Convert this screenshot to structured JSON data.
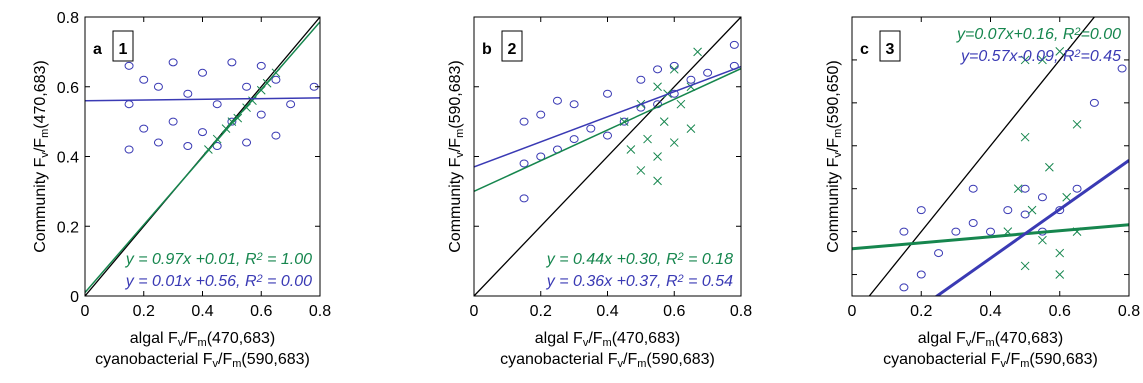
{
  "chart_data": [
    {
      "type": "scatter",
      "panel_letter": "a",
      "panel_number": "1",
      "ylabel": [
        "Community F",
        "v",
        "/F",
        "m",
        "(470,683)"
      ],
      "xlabel": [
        [
          "algal F",
          "v",
          "/F",
          "m",
          "(470,683)"
        ],
        [
          "cyanobacterial F",
          "v",
          "/F",
          "m",
          "(590,683)"
        ]
      ],
      "xlim": [
        0,
        0.8
      ],
      "ylim": [
        0,
        0.8
      ],
      "xticks": [
        0,
        0.2,
        0.4,
        0.6,
        0.8
      ],
      "yticks": [
        0,
        0.2,
        0.4,
        0.6,
        0.8
      ],
      "ytick_labels": true,
      "equation_corner": "bottom right",
      "series": [
        {
          "name": "algal",
          "marker": "o",
          "color": "#3a3ab4",
          "x": [
            0.15,
            0.15,
            0.15,
            0.2,
            0.2,
            0.25,
            0.25,
            0.3,
            0.3,
            0.35,
            0.35,
            0.4,
            0.4,
            0.45,
            0.45,
            0.5,
            0.5,
            0.55,
            0.55,
            0.6,
            0.6,
            0.65,
            0.65,
            0.7,
            0.78
          ],
          "y": [
            0.42,
            0.55,
            0.66,
            0.48,
            0.62,
            0.44,
            0.6,
            0.5,
            0.67,
            0.43,
            0.58,
            0.47,
            0.64,
            0.43,
            0.55,
            0.5,
            0.67,
            0.44,
            0.6,
            0.52,
            0.66,
            0.46,
            0.62,
            0.55,
            0.6
          ]
        },
        {
          "name": "cyanobacterial",
          "marker": "x",
          "color": "#16864e",
          "x": [
            0.42,
            0.45,
            0.48,
            0.5,
            0.52,
            0.55,
            0.57,
            0.6,
            0.62,
            0.65
          ],
          "y": [
            0.42,
            0.45,
            0.48,
            0.5,
            0.51,
            0.54,
            0.56,
            0.59,
            0.61,
            0.64
          ]
        }
      ],
      "fits": [
        {
          "color": "#16864e",
          "slope": 0.97,
          "intercept": 0.01,
          "label": [
            "y = 0.97x +0.01, R",
            "2",
            " = 1.00"
          ]
        },
        {
          "color": "#3a3ab4",
          "slope": 0.01,
          "intercept": 0.56,
          "label": [
            "y = 0.01x +0.56, R",
            "2",
            " = 0.00"
          ]
        }
      ]
    },
    {
      "type": "scatter",
      "panel_letter": "b",
      "panel_number": "2",
      "ylabel": [
        "Community F",
        "v",
        "/F",
        "m",
        "(590,683)"
      ],
      "xlabel": [
        [
          "algal F",
          "v",
          "/F",
          "m",
          "(470,683)"
        ],
        [
          "cyanobacterial F",
          "v",
          "/F",
          "m",
          "(590,683)"
        ]
      ],
      "xlim": [
        0,
        0.8
      ],
      "ylim": [
        0,
        0.8
      ],
      "xticks": [
        0,
        0.2,
        0.4,
        0.6,
        0.8
      ],
      "yticks": [
        0,
        0.2,
        0.4,
        0.6,
        0.8
      ],
      "ytick_labels": false,
      "equation_corner": "bottom right",
      "series": [
        {
          "name": "algal",
          "marker": "o",
          "color": "#3a3ab4",
          "x": [
            0.15,
            0.15,
            0.15,
            0.2,
            0.2,
            0.25,
            0.25,
            0.3,
            0.3,
            0.35,
            0.4,
            0.4,
            0.45,
            0.5,
            0.5,
            0.55,
            0.55,
            0.6,
            0.6,
            0.65,
            0.7,
            0.78,
            0.78
          ],
          "y": [
            0.28,
            0.38,
            0.5,
            0.4,
            0.52,
            0.42,
            0.56,
            0.45,
            0.55,
            0.48,
            0.46,
            0.58,
            0.5,
            0.54,
            0.62,
            0.55,
            0.65,
            0.58,
            0.66,
            0.62,
            0.64,
            0.66,
            0.72
          ]
        },
        {
          "name": "cyanobacterial",
          "marker": "x",
          "color": "#16864e",
          "x": [
            0.45,
            0.47,
            0.5,
            0.5,
            0.52,
            0.55,
            0.55,
            0.57,
            0.6,
            0.6,
            0.62,
            0.65,
            0.65,
            0.67,
            0.55,
            0.58
          ],
          "y": [
            0.5,
            0.42,
            0.36,
            0.55,
            0.45,
            0.6,
            0.4,
            0.5,
            0.65,
            0.44,
            0.55,
            0.6,
            0.48,
            0.7,
            0.33,
            0.58
          ]
        }
      ],
      "fits": [
        {
          "color": "#16864e",
          "slope": 0.44,
          "intercept": 0.3,
          "label": [
            "y = 0.44x +0.30, R",
            "2",
            " = 0.18"
          ]
        },
        {
          "color": "#3a3ab4",
          "slope": 0.36,
          "intercept": 0.37,
          "label": [
            "y = 0.36x +0.37, R",
            "2",
            " = 0.54"
          ]
        }
      ]
    },
    {
      "type": "scatter",
      "panel_letter": "c",
      "panel_number": "3",
      "ylabel": [
        "Community F",
        "v",
        "/F",
        "m",
        "(590,650)"
      ],
      "xlabel": [
        [
          "algal F",
          "v",
          "/F",
          "m",
          "(470,683)"
        ],
        [
          "cyanobacterial F",
          "v",
          "/F",
          "m",
          "(590,683)"
        ]
      ],
      "xlim": [
        0,
        0.8
      ],
      "ylim": [
        0.05,
        0.7
      ],
      "xticks": [
        0,
        0.2,
        0.4,
        0.6,
        0.8
      ],
      "yticks": [
        0.1,
        0.2,
        0.3,
        0.4,
        0.5,
        0.6,
        0.7
      ],
      "ytick_labels": false,
      "equation_corner": "top right",
      "series": [
        {
          "name": "algal",
          "marker": "o",
          "color": "#3a3ab4",
          "x": [
            0.15,
            0.15,
            0.2,
            0.2,
            0.25,
            0.3,
            0.35,
            0.35,
            0.4,
            0.45,
            0.5,
            0.5,
            0.55,
            0.55,
            0.6,
            0.65,
            0.7,
            0.78
          ],
          "y": [
            0.07,
            0.2,
            0.1,
            0.25,
            0.15,
            0.2,
            0.22,
            0.3,
            0.2,
            0.25,
            0.24,
            0.3,
            0.2,
            0.28,
            0.25,
            0.3,
            0.5,
            0.58
          ]
        },
        {
          "name": "cyanobacterial",
          "marker": "x",
          "color": "#16864e",
          "x": [
            0.45,
            0.48,
            0.5,
            0.5,
            0.52,
            0.55,
            0.55,
            0.57,
            0.6,
            0.6,
            0.62,
            0.65,
            0.65,
            0.5,
            0.6
          ],
          "y": [
            0.2,
            0.3,
            0.12,
            0.42,
            0.25,
            0.6,
            0.18,
            0.35,
            0.62,
            0.1,
            0.28,
            0.45,
            0.2,
            0.6,
            0.15
          ]
        }
      ],
      "fits": [
        {
          "color": "#16864e",
          "slope": 0.07,
          "intercept": 0.16,
          "label": [
            "y=0.07x+0.16, R",
            "2",
            "=0.00"
          ]
        },
        {
          "color": "#3a3ab4",
          "slope": 0.57,
          "intercept": -0.09,
          "label": [
            "y=0.57x-0.09, R",
            "2",
            "=0.45"
          ]
        }
      ]
    }
  ]
}
